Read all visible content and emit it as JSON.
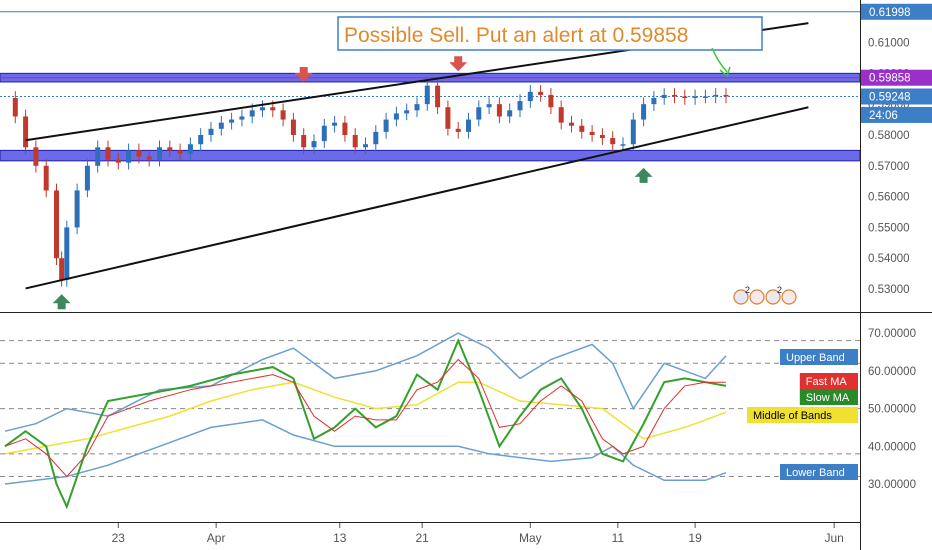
{
  "colors": {
    "bull": "#2e6fba",
    "bear": "#c0392b",
    "zone": "#3a3ae0",
    "trendline": "#111111",
    "alert_line": "#9b30c8",
    "top_line": "#3d7fc7",
    "last_price_line": "#3d7fc7",
    "annotation": "#e08a2c",
    "sell_arrow": "#d9534f",
    "buy_arrow": "#3c8a5c",
    "fast_ma": "#e03030",
    "slow_ma": "#33a02c",
    "mid_band": "#f0e130",
    "bands": "#6a9fd0",
    "rsi_line": "#33a02c",
    "dashed": "#888888"
  },
  "icons": {
    "sell_arrow": "arrow-down-icon",
    "buy_arrow": "arrow-up-icon",
    "alert_arrow": "arrow-icon",
    "events": "event-icons"
  },
  "annotation": {
    "text": "Possible Sell. Put an alert at 0.59858"
  },
  "badges": {
    "events": [
      "2",
      "2"
    ]
  },
  "chart_data": [
    {
      "type": "line",
      "subtype": "candlestick",
      "x_tick_labels": [
        "23",
        "Apr",
        "13",
        "21",
        "May",
        "11",
        "19",
        "Jun"
      ],
      "y_tick_labels": [
        "0.61000",
        "0.60000",
        "0.59000",
        "0.58000",
        "0.57000",
        "0.56000",
        "0.55000",
        "0.54000",
        "0.53000"
      ],
      "ylim": [
        0.5245,
        0.6225
      ],
      "grid": false,
      "price_labels": [
        {
          "text": "0.61998",
          "value": 0.61998,
          "color": "#3d7fc7"
        },
        {
          "text": "0.59858",
          "value": 0.59858,
          "color": "#9b30c8"
        },
        {
          "text": "0.59248",
          "value": 0.59248,
          "color": "#3d7fc7"
        },
        {
          "text": "24:06",
          "value": 0.5865,
          "color": "#3d7fc7"
        }
      ],
      "horizontal_lines": [
        {
          "name": "top-line",
          "value": 0.61998
        },
        {
          "name": "alert-line",
          "value": 0.59858
        },
        {
          "name": "last-price-line",
          "value": 0.59248
        }
      ],
      "zones": [
        {
          "name": "resistance-zone",
          "from": 0.5972,
          "to": 0.6
        },
        {
          "name": "support-zone",
          "from": 0.5716,
          "to": 0.575
        }
      ],
      "trendlines": [
        {
          "name": "upper-trendline",
          "from": {
            "day": 2.0,
            "value": 0.5783
          },
          "to": {
            "day": 78.0,
            "value": 0.6163
          }
        },
        {
          "name": "lower-trendline",
          "from": {
            "day": 2.0,
            "value": 0.5302
          },
          "to": {
            "day": 78.0,
            "value": 0.589
          }
        }
      ],
      "close_series": {
        "x": [
          0,
          1,
          2,
          3,
          4,
          5,
          5.5,
          6,
          7,
          8,
          9,
          10,
          11,
          12,
          13,
          14,
          15,
          16,
          17,
          18,
          19,
          20,
          21,
          22,
          23,
          24,
          25,
          26,
          27,
          28,
          29,
          30,
          31,
          32,
          33,
          34,
          35,
          36,
          37,
          38,
          39,
          40,
          41,
          42,
          43,
          44,
          45,
          46,
          47,
          48,
          49,
          50,
          51,
          52,
          53,
          54,
          55,
          56,
          57,
          58,
          59,
          60,
          61,
          62,
          63,
          64,
          65,
          66,
          67,
          68,
          69,
          70
        ],
        "values": [
          0.592,
          0.586,
          0.576,
          0.57,
          0.562,
          0.54,
          0.533,
          0.55,
          0.562,
          0.57,
          0.576,
          0.572,
          0.571,
          0.575,
          0.573,
          0.572,
          0.576,
          0.575,
          0.574,
          0.577,
          0.58,
          0.582,
          0.584,
          0.585,
          0.586,
          0.588,
          0.589,
          0.588,
          0.585,
          0.58,
          0.576,
          0.578,
          0.583,
          0.584,
          0.58,
          0.576,
          0.577,
          0.581,
          0.585,
          0.587,
          0.588,
          0.59,
          0.596,
          0.589,
          0.582,
          0.581,
          0.585,
          0.589,
          0.59,
          0.586,
          0.588,
          0.591,
          0.594,
          0.593,
          0.589,
          0.584,
          0.583,
          0.581,
          0.58,
          0.579,
          0.577,
          0.577,
          0.585,
          0.59,
          0.592,
          0.593,
          0.5925,
          0.592,
          0.5925,
          0.5925,
          0.593,
          0.5925
        ]
      },
      "markers": [
        {
          "name": "sell-arrow-1",
          "day": 29,
          "value": 0.5975,
          "direction": "down"
        },
        {
          "name": "sell-arrow-2",
          "day": 44,
          "value": 0.601,
          "direction": "down"
        },
        {
          "name": "buy-arrow-1",
          "day": 5.5,
          "value": 0.528,
          "direction": "up"
        },
        {
          "name": "buy-arrow-2",
          "day": 62,
          "value": 0.569,
          "direction": "up"
        }
      ]
    },
    {
      "type": "line",
      "subtype": "rsi-bollinger",
      "x_tick_labels": [
        "23",
        "Apr",
        "13",
        "21",
        "May",
        "11",
        "19",
        "Jun"
      ],
      "y_tick_labels": [
        "70.00000",
        "60.00000",
        "50.00000",
        "40.00000",
        "30.00000"
      ],
      "ylim": [
        21,
        74
      ],
      "dashed_levels": [
        68,
        62,
        50,
        38,
        32
      ],
      "legend_labels": [
        {
          "text": "Upper Band",
          "bg": "#3d7fc7",
          "fg": "#ffffff"
        },
        {
          "text": "Fast MA",
          "bg": "#e03030",
          "fg": "#ffffff"
        },
        {
          "text": "Slow MA",
          "bg": "#2a8a2a",
          "fg": "#ffffff"
        },
        {
          "text": "Middle of Bands",
          "bg": "#f0e130",
          "fg": "#000000"
        },
        {
          "text": "Lower Band",
          "bg": "#3d7fc7",
          "fg": "#ffffff"
        }
      ],
      "series": [
        {
          "name": "Upper Band",
          "x": [
            0,
            3,
            6,
            10,
            15,
            20,
            25,
            28,
            32,
            36,
            40,
            44,
            47,
            50,
            53,
            57,
            59,
            61,
            64,
            68,
            70
          ],
          "values": [
            44,
            46,
            50,
            48,
            55,
            56,
            63,
            66,
            58,
            60,
            64,
            70,
            66,
            58,
            63,
            67,
            62,
            50,
            62,
            58,
            64
          ]
        },
        {
          "name": "Lower Band",
          "x": [
            0,
            3,
            6,
            10,
            15,
            20,
            25,
            28,
            32,
            36,
            40,
            44,
            47,
            50,
            53,
            57,
            59,
            61,
            64,
            68,
            70
          ],
          "values": [
            30,
            31,
            32,
            35,
            40,
            45,
            47,
            43,
            40,
            40,
            40,
            40,
            38,
            37,
            36,
            37,
            40,
            35,
            31,
            31,
            33
          ]
        },
        {
          "name": "Middle of Bands",
          "x": [
            0,
            4,
            8,
            12,
            16,
            20,
            24,
            28,
            32,
            36,
            40,
            44,
            46,
            50,
            54,
            58,
            62,
            66,
            70
          ],
          "values": [
            38,
            40,
            42,
            45,
            48,
            52,
            55,
            57,
            53,
            50,
            51,
            57,
            57,
            52,
            51,
            50,
            42,
            45,
            49
          ]
        },
        {
          "name": "Slow MA",
          "x": [
            0,
            2,
            4,
            5,
            6,
            8,
            10,
            14,
            18,
            22,
            26,
            28,
            30,
            32,
            34,
            36,
            38,
            40,
            42,
            44,
            46,
            48,
            50,
            52,
            54,
            56,
            58,
            60,
            62,
            64,
            66,
            68,
            70
          ],
          "values": [
            40,
            44,
            40,
            30,
            24,
            40,
            52,
            54,
            56,
            59,
            61,
            58,
            42,
            45,
            50,
            45,
            48,
            59,
            55,
            68,
            55,
            40,
            48,
            55,
            58,
            50,
            38,
            36,
            46,
            57,
            58,
            57,
            56
          ]
        },
        {
          "name": "Fast MA",
          "x": [
            0,
            2,
            4,
            6,
            8,
            10,
            14,
            18,
            22,
            26,
            28,
            30,
            32,
            34,
            36,
            38,
            40,
            42,
            44,
            46,
            48,
            50,
            52,
            54,
            56,
            58,
            60,
            62,
            64,
            66,
            68,
            70
          ],
          "values": [
            40,
            42,
            38,
            32,
            38,
            48,
            52,
            55,
            57,
            59,
            57,
            48,
            44,
            48,
            47,
            47,
            55,
            57,
            63,
            58,
            45,
            46,
            52,
            56,
            52,
            42,
            38,
            40,
            50,
            56,
            57,
            57
          ]
        }
      ]
    }
  ]
}
